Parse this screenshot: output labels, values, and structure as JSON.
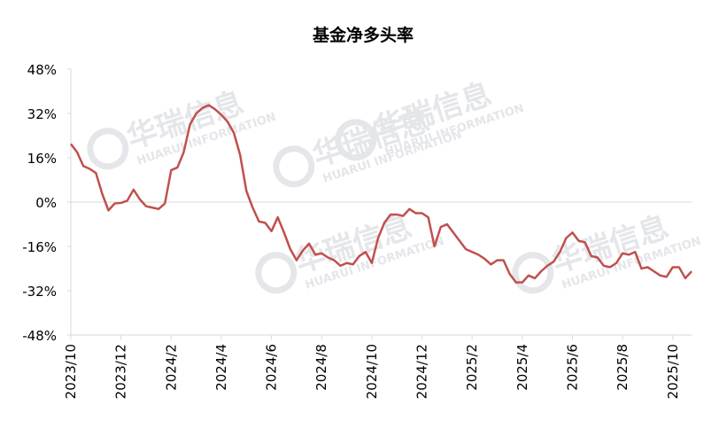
{
  "chart_data": {
    "type": "line",
    "title": "基金净多头率",
    "watermark": "华瑞信息",
    "watermark_sub": "HUARUI INFORMATION",
    "categories": [
      "2023/10",
      null,
      null,
      null,
      null,
      null,
      null,
      null,
      "2023/12",
      null,
      null,
      null,
      null,
      null,
      null,
      null,
      "2024/2",
      null,
      null,
      null,
      null,
      null,
      null,
      null,
      "2024/4",
      null,
      null,
      null,
      null,
      null,
      null,
      null,
      "2024/6",
      null,
      null,
      null,
      null,
      null,
      null,
      null,
      "2024/8",
      null,
      null,
      null,
      null,
      null,
      null,
      null,
      "2024/10",
      null,
      null,
      null,
      null,
      null,
      null,
      null,
      "2024/12",
      null,
      null,
      null,
      null,
      null,
      null,
      null,
      "2025/2",
      null,
      null,
      null,
      null,
      null,
      null,
      null,
      "2025/4",
      null,
      null,
      null,
      null,
      null,
      null,
      null,
      "2025/6",
      null,
      null,
      null,
      null,
      null,
      null,
      null,
      "2025/8",
      null,
      null,
      null,
      null,
      null,
      null,
      null,
      "2025/10",
      null,
      null,
      null
    ],
    "series": [
      {
        "name": "基金净多头率",
        "color": "#c0504d",
        "values": [
          21,
          18,
          13,
          12,
          10.5,
          3,
          -3,
          -0.5,
          -0.3,
          0.5,
          4.5,
          1,
          -1.5,
          -2,
          -2.5,
          -0.5,
          11.5,
          12.5,
          18,
          28,
          32,
          34,
          35,
          33.5,
          31.5,
          29,
          25,
          17,
          4,
          -2,
          -7,
          -7.5,
          -10.5,
          -5.5,
          -11,
          -17,
          -21,
          -17.5,
          -15,
          -19,
          -18.5,
          -20,
          -21,
          -23,
          -22,
          -22.5,
          -19.5,
          -18,
          -22,
          -13,
          -7.5,
          -4.5,
          -4.5,
          -5,
          -2.5,
          -4,
          -4,
          -5.5,
          -16,
          -9,
          -8,
          -11,
          -14,
          -17,
          -18,
          -19,
          -20.5,
          -22.5,
          -21,
          -21,
          -26,
          -29,
          -29,
          -26.5,
          -27.5,
          -25,
          -23,
          -21.5,
          -18,
          -13,
          -11,
          -14,
          -14.5,
          -19.5,
          -20,
          -23,
          -23.5,
          -22,
          -18.5,
          -19,
          -18,
          -24,
          -23.5,
          -25,
          -26.5,
          -27,
          -23.5,
          -23.5,
          -27.5,
          -25
        ]
      }
    ],
    "ylim": [
      -48,
      48
    ],
    "yticks": [
      {
        "value": -48,
        "label": "-48%"
      },
      {
        "value": -32,
        "label": "-32%"
      },
      {
        "value": -16,
        "label": "-16%"
      },
      {
        "value": 0,
        "label": "0%"
      },
      {
        "value": 16,
        "label": "16%"
      },
      {
        "value": 32,
        "label": "32%"
      },
      {
        "value": 48,
        "label": "48%"
      }
    ],
    "grid": false
  }
}
